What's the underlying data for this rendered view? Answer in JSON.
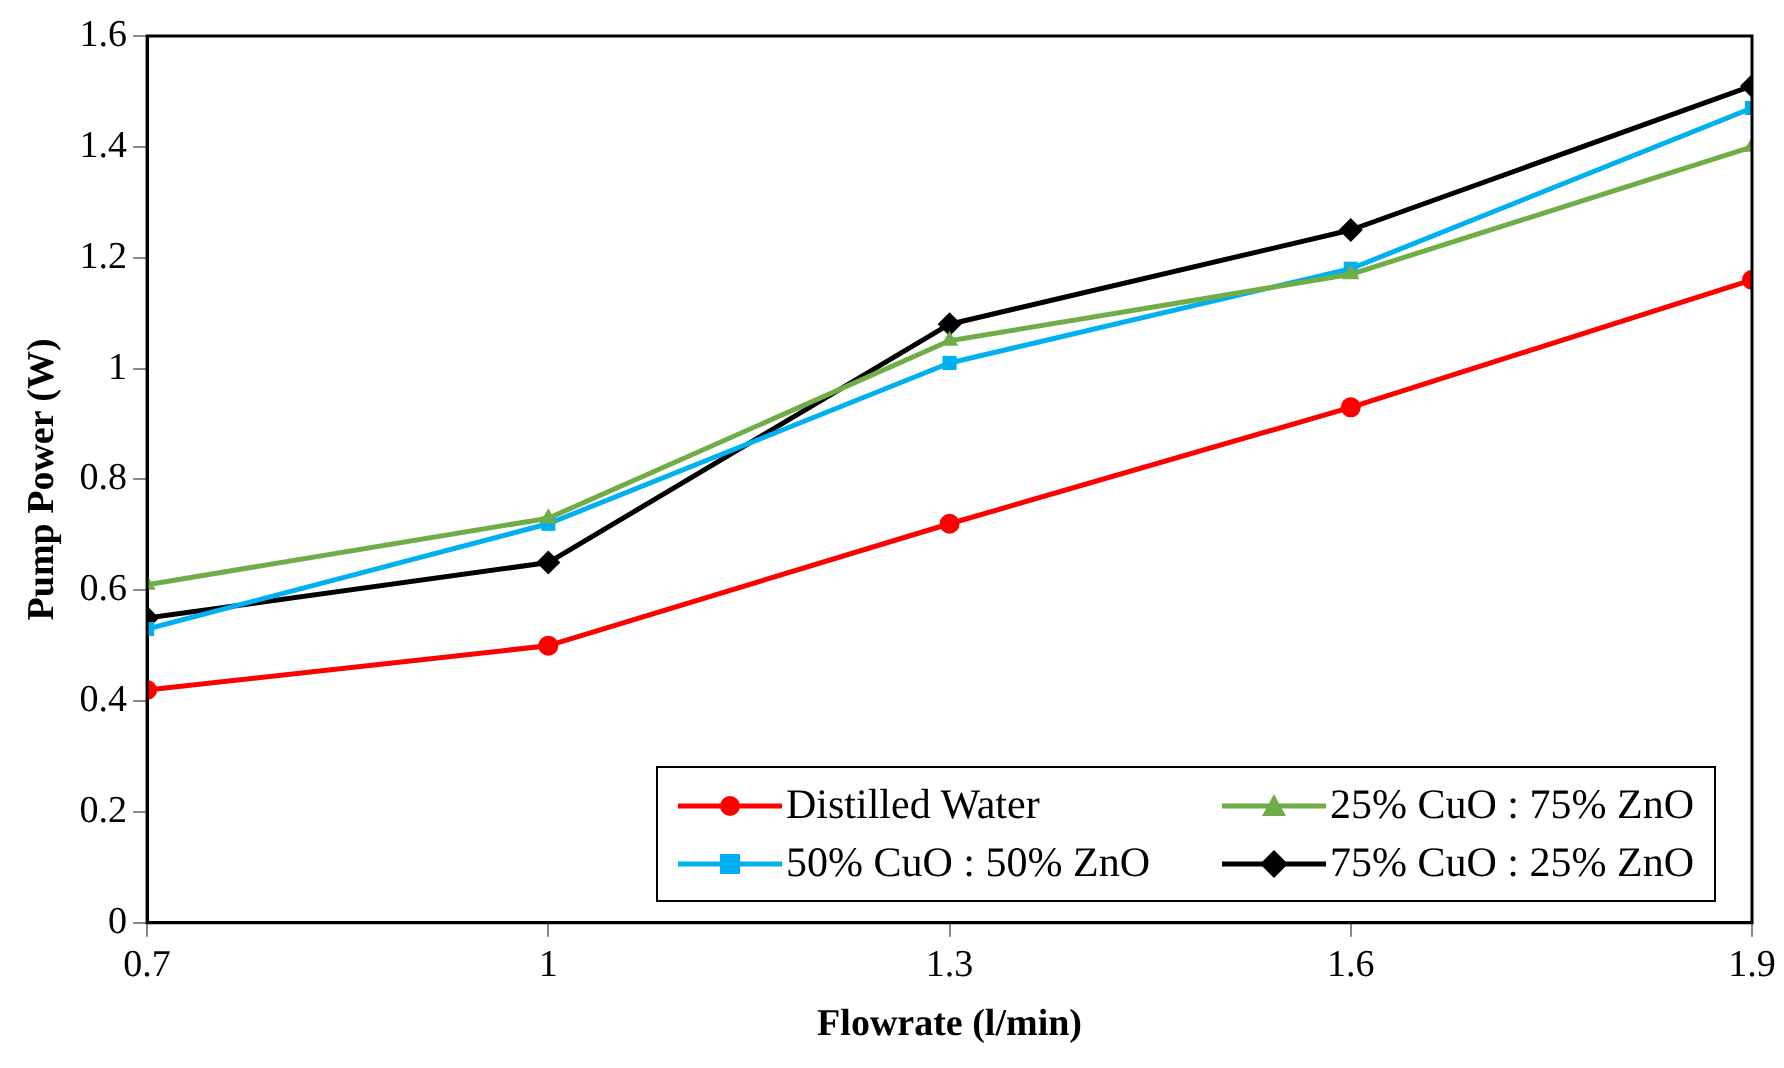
{
  "chart_data": {
    "type": "line",
    "xlabel": "Flowrate (l/min)",
    "ylabel": "Pump Power (W)",
    "x": [
      0.7,
      1,
      1.3,
      1.6,
      1.9
    ],
    "xlim": [
      0.7,
      1.9
    ],
    "xticks": [
      0.7,
      1,
      1.3,
      1.6,
      1.9
    ],
    "ylim": [
      0,
      1.6
    ],
    "yticks": [
      0,
      0.2,
      0.4,
      0.6,
      0.8,
      1,
      1.2,
      1.4,
      1.6
    ],
    "legend": "bottom right",
    "line_style": "solid",
    "series": [
      {
        "name": "Distilled Water",
        "color": "#ff0000",
        "marker": "circle",
        "values": [
          0.42,
          0.5,
          0.72,
          0.93,
          1.16
        ]
      },
      {
        "name": "25% CuO : 75% ZnO",
        "color": "#70ad47",
        "marker": "triangle",
        "values": [
          0.61,
          0.73,
          1.05,
          1.17,
          1.4
        ]
      },
      {
        "name": "50% CuO : 50% ZnO",
        "color": "#00b0f0",
        "marker": "square",
        "values": [
          0.53,
          0.72,
          1.01,
          1.18,
          1.47
        ]
      },
      {
        "name": "75% CuO : 25% ZnO",
        "color": "#000000",
        "marker": "diamond",
        "values": [
          0.55,
          0.65,
          1.08,
          1.25,
          1.51
        ]
      }
    ]
  }
}
